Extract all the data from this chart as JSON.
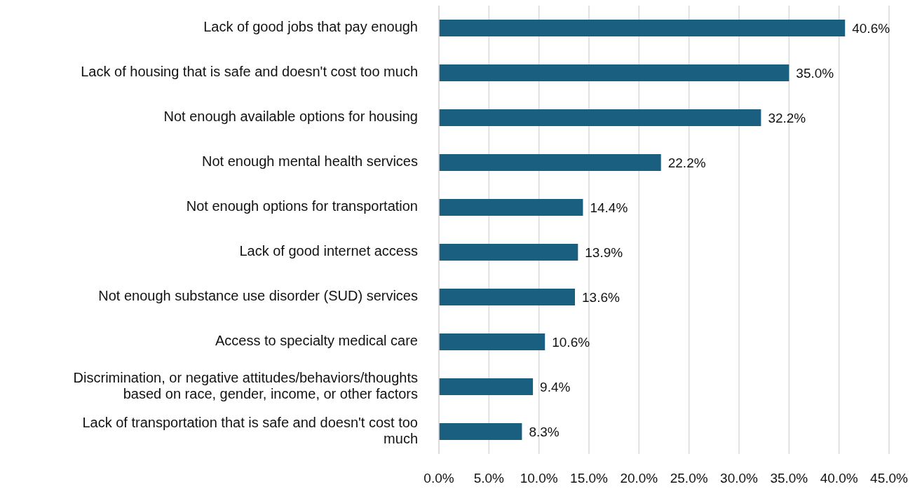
{
  "chart_data": {
    "type": "bar",
    "orientation": "horizontal",
    "categories": [
      "Lack of good jobs that pay enough",
      "Lack of housing that is safe and doesn't cost too much",
      "Not enough available options for housing",
      "Not enough mental health services",
      "Not enough options for transportation",
      "Lack of good internet access",
      "Not enough substance use disorder (SUD) services",
      "Access to specialty medical care",
      "Discrimination, or negative attitudes/behaviors/thoughts based on race, gender, income, or other factors",
      "Lack of transportation that is safe and doesn't cost too much"
    ],
    "values": [
      40.6,
      35.0,
      32.2,
      22.2,
      14.4,
      13.9,
      13.6,
      10.6,
      9.4,
      8.3
    ],
    "value_labels": [
      "40.6%",
      "35.0%",
      "32.2%",
      "22.2%",
      "14.4%",
      "13.9%",
      "13.6%",
      "10.6%",
      "9.4%",
      "8.3%"
    ],
    "color": "#1a5f80",
    "xlim": [
      0,
      45
    ],
    "xticks": [
      {
        "value": 0,
        "label": "0.0%"
      },
      {
        "value": 5,
        "label": "5.0%"
      },
      {
        "value": 10,
        "label": "10.0%"
      },
      {
        "value": 15,
        "label": "15.0%"
      },
      {
        "value": 20,
        "label": "20.0%"
      },
      {
        "value": 25,
        "label": "25.0%"
      },
      {
        "value": 30,
        "label": "30.0%"
      },
      {
        "value": 35,
        "label": "35.0%"
      },
      {
        "value": 40,
        "label": "40.0%"
      },
      {
        "value": 45,
        "label": "45.0%"
      }
    ],
    "grid": "x",
    "legend": false
  }
}
